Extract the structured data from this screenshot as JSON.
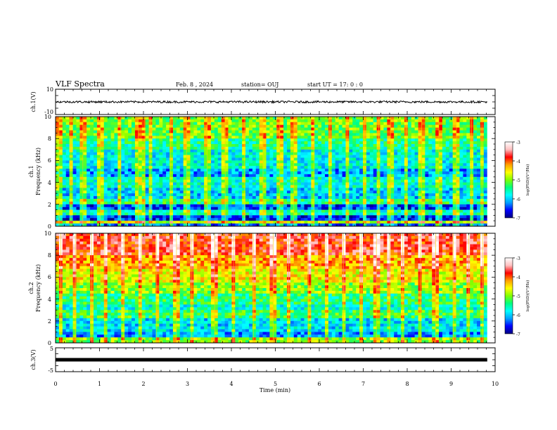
{
  "header": {
    "title": "VLF Spectra",
    "date": "Feb. 8 , 2024",
    "station": "station= OUJ",
    "start": "start  UT  =   17: 0  : 0"
  },
  "chart_data": {
    "type": "heatmap",
    "x": {
      "label": "Time (min)",
      "range": [
        0,
        10
      ],
      "ticks": [
        "0",
        "1",
        "2",
        "3",
        "4",
        "5",
        "6",
        "7",
        "8",
        "9",
        "10"
      ],
      "data_end": 9.82
    },
    "panels": [
      {
        "id": "ch1-waveform",
        "type": "line",
        "ylabel": "ch.1(V)",
        "ylim": [
          -10,
          10
        ],
        "yticks": [
          "10",
          "-10"
        ],
        "level": 0
      },
      {
        "id": "ch1-spectrogram",
        "type": "heatmap",
        "ylabel_line1": "ch.1",
        "ylabel_line2": "Frequency (kHz)",
        "ylim": [
          0,
          10
        ],
        "yticks": [
          "0",
          "2",
          "4",
          "6",
          "8",
          "10"
        ],
        "base_level": -5.8,
        "bands": [
          {
            "f": [
              0.0,
              0.3
            ],
            "v": -6.4
          },
          {
            "f": [
              0.3,
              0.6
            ],
            "v": -4.8
          },
          {
            "f": [
              0.6,
              1.1
            ],
            "v": -6.6
          },
          {
            "f": [
              1.1,
              1.5
            ],
            "v": -5.6
          },
          {
            "f": [
              1.5,
              2.0
            ],
            "v": -6.5
          },
          {
            "f": [
              2.0,
              2.4
            ],
            "v": -5.4
          },
          {
            "f": [
              2.4,
              3.6
            ],
            "v": -6.0
          },
          {
            "f": [
              3.6,
              4.6
            ],
            "v": -5.7
          },
          {
            "f": [
              4.6,
              5.2
            ],
            "v": -6.2
          },
          {
            "f": [
              5.2,
              7.0
            ],
            "v": -5.8
          },
          {
            "f": [
              7.0,
              8.0
            ],
            "v": -5.5
          },
          {
            "f": [
              8.0,
              10.0
            ],
            "v": -5.1
          }
        ],
        "bursts": [
          0.08,
          0.35,
          0.62,
          1.02,
          1.48,
          1.88,
          2.03,
          2.15,
          2.62,
          2.98,
          3.45,
          3.86,
          4.3,
          4.72,
          5.1,
          5.42,
          5.88,
          6.24,
          6.63,
          7.02,
          7.35,
          7.62,
          7.98,
          8.33,
          8.72,
          9.12,
          9.46,
          9.7
        ]
      },
      {
        "id": "ch2-spectrogram",
        "type": "heatmap",
        "ylabel_line1": "ch.2",
        "ylabel_line2": "Frequency (kHz)",
        "ylim": [
          0,
          10
        ],
        "yticks": [
          "0",
          "2",
          "4",
          "6",
          "8",
          "10"
        ],
        "base_level": -5.0,
        "bands": [
          {
            "f": [
              0.0,
              0.4
            ],
            "v": -5.0
          },
          {
            "f": [
              0.4,
              1.0
            ],
            "v": -6.2
          },
          {
            "f": [
              1.0,
              2.2
            ],
            "v": -5.9
          },
          {
            "f": [
              2.2,
              3.0
            ],
            "v": -5.3
          },
          {
            "f": [
              3.0,
              3.6
            ],
            "v": -5.7
          },
          {
            "f": [
              3.6,
              4.6
            ],
            "v": -5.4
          },
          {
            "f": [
              4.6,
              5.6
            ],
            "v": -5.0
          },
          {
            "f": [
              5.6,
              6.8
            ],
            "v": -4.6
          },
          {
            "f": [
              6.8,
              8.0
            ],
            "v": -4.3
          },
          {
            "f": [
              8.0,
              10.0
            ],
            "v": -3.8
          }
        ],
        "bursts": [
          0.12,
          0.45,
          0.82,
          1.12,
          1.55,
          1.95,
          2.3,
          2.75,
          3.1,
          3.62,
          4.05,
          4.5,
          4.95,
          5.3,
          5.75,
          6.15,
          6.55,
          6.95,
          7.3,
          7.6,
          7.9,
          8.3,
          8.65,
          9.05,
          9.4,
          9.72
        ]
      },
      {
        "id": "ch3-waveform",
        "type": "line",
        "ylabel": "ch.3(V)",
        "ylim": [
          -5,
          5
        ],
        "yticks": [
          "5",
          "-5"
        ],
        "level": 0
      }
    ],
    "colorbar": {
      "label": "log(PSD)(V²/Hz)",
      "range": [
        -7,
        -3
      ],
      "ticks": [
        "-3",
        "-4",
        "-5",
        "-6",
        "-7"
      ],
      "colors": [
        "#000080",
        "#0000ff",
        "#00a0ff",
        "#00ffff",
        "#00ff80",
        "#80ff00",
        "#ffff00",
        "#ffa000",
        "#ff0000",
        "#ffc0c0",
        "#ffffff"
      ]
    }
  }
}
